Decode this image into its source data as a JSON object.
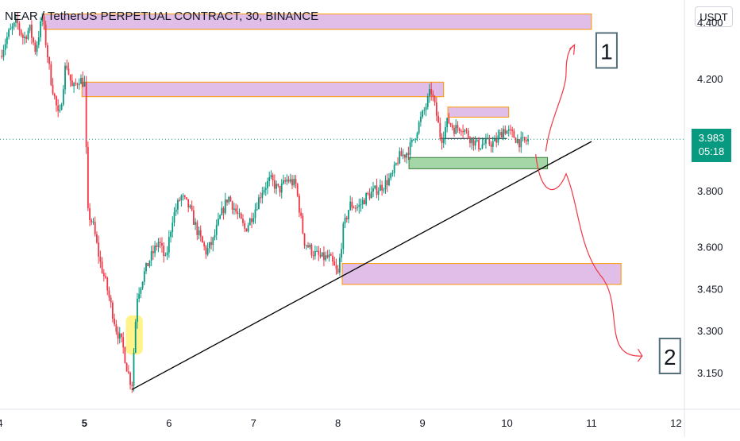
{
  "header": {
    "title": "NEAR / TetherUS PERPETUAL CONTRACT, 30, BINANCE",
    "unit": "USDT"
  },
  "price_tag": {
    "price": "3.983",
    "countdown": "05:18"
  },
  "annotations": {
    "label_1": "1",
    "label_2": "2"
  },
  "colors": {
    "up": "#089981",
    "down": "#f23645",
    "zone_fill": "#e1bee7",
    "zone_border": "#ff9800",
    "support_fill": "#a5d6a7",
    "highlight": "#fff176",
    "trendline": "#000000",
    "arrow": "#f23645",
    "current_line": "#089981"
  },
  "chart_data": {
    "type": "candlestick",
    "title": "NEAR / TetherUS PERPETUAL CONTRACT, 30, BINANCE",
    "ylabel": "USDT",
    "ylim": [
      3.02,
      4.48
    ],
    "xlim": [
      4.0,
      12.1
    ],
    "x_ticks": [
      "4",
      "5",
      "6",
      "7",
      "8",
      "9",
      "10",
      "11",
      "12"
    ],
    "x_tick_values": [
      4,
      5,
      6,
      7,
      8,
      9,
      10,
      11,
      12
    ],
    "x_bold_tick": "5",
    "y_ticks": [
      "4.400",
      "4.200",
      "3.800",
      "3.600",
      "3.450",
      "3.300",
      "3.150"
    ],
    "y_tick_values": [
      4.4,
      4.2,
      3.8,
      3.6,
      3.45,
      3.3,
      3.15
    ],
    "current_price": 3.983,
    "price_path": [
      [
        4.0,
        4.28
      ],
      [
        4.1,
        4.36
      ],
      [
        4.2,
        4.4
      ],
      [
        4.28,
        4.34
      ],
      [
        4.35,
        4.38
      ],
      [
        4.42,
        4.3
      ],
      [
        4.5,
        4.42
      ],
      [
        4.6,
        4.2
      ],
      [
        4.7,
        4.05
      ],
      [
        4.78,
        4.26
      ],
      [
        4.86,
        4.16
      ],
      [
        4.94,
        4.2
      ],
      [
        5.0,
        4.18
      ],
      [
        5.04,
        3.72
      ],
      [
        5.1,
        3.68
      ],
      [
        5.18,
        3.55
      ],
      [
        5.26,
        3.46
      ],
      [
        5.32,
        3.38
      ],
      [
        5.38,
        3.3
      ],
      [
        5.45,
        3.25
      ],
      [
        5.5,
        3.17
      ],
      [
        5.56,
        3.1
      ],
      [
        5.62,
        3.42
      ],
      [
        5.7,
        3.5
      ],
      [
        5.78,
        3.56
      ],
      [
        5.88,
        3.62
      ],
      [
        5.96,
        3.55
      ],
      [
        6.04,
        3.7
      ],
      [
        6.14,
        3.78
      ],
      [
        6.24,
        3.74
      ],
      [
        6.34,
        3.65
      ],
      [
        6.44,
        3.58
      ],
      [
        6.52,
        3.62
      ],
      [
        6.6,
        3.7
      ],
      [
        6.7,
        3.78
      ],
      [
        6.8,
        3.72
      ],
      [
        6.9,
        3.66
      ],
      [
        7.0,
        3.72
      ],
      [
        7.1,
        3.8
      ],
      [
        7.2,
        3.84
      ],
      [
        7.3,
        3.8
      ],
      [
        7.4,
        3.84
      ],
      [
        7.5,
        3.82
      ],
      [
        7.6,
        3.62
      ],
      [
        7.7,
        3.58
      ],
      [
        7.8,
        3.56
      ],
      [
        7.9,
        3.56
      ],
      [
        8.0,
        3.5
      ],
      [
        8.06,
        3.66
      ],
      [
        8.14,
        3.75
      ],
      [
        8.24,
        3.74
      ],
      [
        8.34,
        3.78
      ],
      [
        8.44,
        3.8
      ],
      [
        8.54,
        3.82
      ],
      [
        8.64,
        3.85
      ],
      [
        8.72,
        3.92
      ],
      [
        8.8,
        3.93
      ],
      [
        8.88,
        3.97
      ],
      [
        8.96,
        4.04
      ],
      [
        9.04,
        4.1
      ],
      [
        9.1,
        4.16
      ],
      [
        9.16,
        4.08
      ],
      [
        9.22,
        3.98
      ],
      [
        9.3,
        4.05
      ],
      [
        9.38,
        4.02
      ],
      [
        9.46,
        4.03
      ],
      [
        9.56,
        3.99
      ],
      [
        9.66,
        3.96
      ],
      [
        9.76,
        3.97
      ],
      [
        9.86,
        3.97
      ],
      [
        9.96,
        4.02
      ],
      [
        10.06,
        4.0
      ],
      [
        10.16,
        3.97
      ],
      [
        10.26,
        3.98
      ]
    ],
    "zones": [
      {
        "x0": 4.52,
        "x1": 11.0,
        "y0": 4.375,
        "y1": 4.43
      },
      {
        "x0": 4.97,
        "x1": 9.25,
        "y0": 4.135,
        "y1": 4.187
      },
      {
        "x0": 9.3,
        "x1": 10.02,
        "y0": 4.062,
        "y1": 4.098
      },
      {
        "x0": 8.05,
        "x1": 11.35,
        "y0": 3.465,
        "y1": 3.54
      }
    ],
    "support_zone": {
      "x0": 8.84,
      "x1": 10.48,
      "y0": 3.878,
      "y1": 3.918
    },
    "support_line": {
      "x0": 9.2,
      "x1": 10.0,
      "y": 3.986
    },
    "highlight_zone": {
      "x0": 5.49,
      "x1": 5.69,
      "y0": 3.215,
      "y1": 3.355
    },
    "trendline": [
      [
        5.56,
        3.09
      ],
      [
        11.0,
        3.975
      ]
    ],
    "label_positions": [
      [
        11.0,
        4.3
      ],
      [
        11.75,
        3.21
      ]
    ]
  }
}
